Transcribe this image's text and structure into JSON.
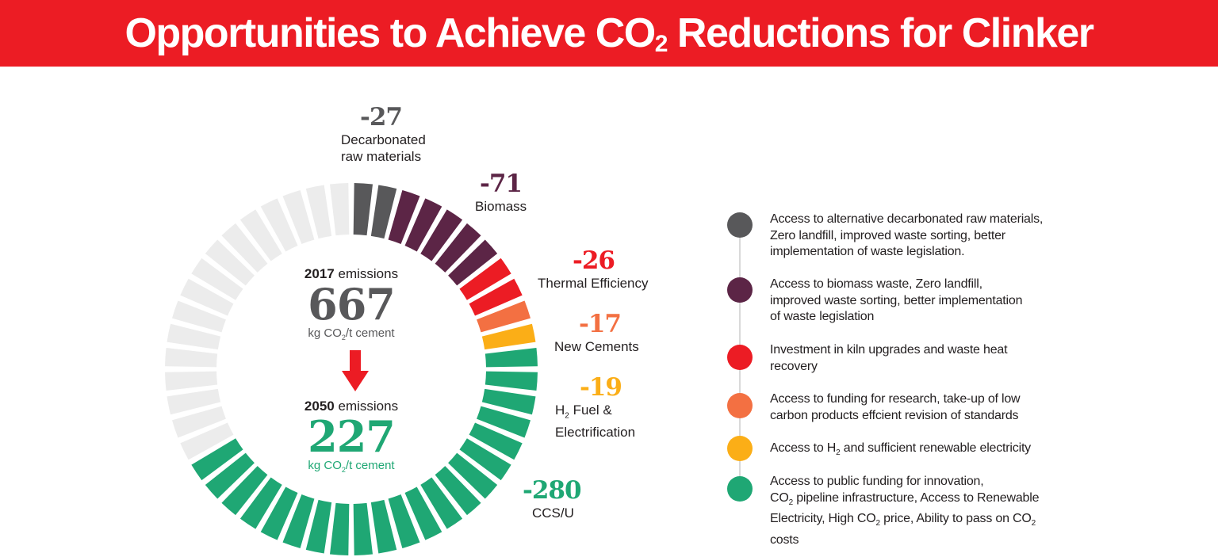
{
  "title": {
    "prefix": "Opportunities to Achieve CO",
    "subscript": "2",
    "suffix": " Reductions for Clinker"
  },
  "center": {
    "year_2017": "2017",
    "emissions_word": "emissions",
    "value_2017": "667",
    "unit_prefix": "kg CO",
    "unit_sub": "2",
    "unit_suffix": "/t cement",
    "year_2050": "2050",
    "value_2050": "227"
  },
  "colors": {
    "banner": "#ec1c24",
    "remaining": "#ececec",
    "decarbonated": "#58585a",
    "biomass": "#5c2546",
    "thermal": "#ec1c24",
    "new_cements": "#f37042",
    "h2": "#fbae17",
    "ccs": "#1fa774"
  },
  "segment_labels": [
    {
      "value": "-27",
      "name_line1": "Decarbonated",
      "name_line2": "raw materials",
      "color": "#58585a"
    },
    {
      "value": "-71",
      "name_line1": "Biomass",
      "name_line2": "",
      "color": "#5c2546"
    },
    {
      "value": "-26",
      "name_line1": "Thermal Efficiency",
      "name_line2": "",
      "color": "#ec1c24"
    },
    {
      "value": "-17",
      "name_line1": "New Cements",
      "name_line2": "",
      "color": "#f37042"
    },
    {
      "value": "-19",
      "name_line1": "H",
      "name_line1_sub": "2",
      "name_line1_rest": " Fuel &",
      "name_line2": "Electrification",
      "color": "#fbae17"
    },
    {
      "value": "-280",
      "name_line1": "CCS/U",
      "name_line2": "",
      "color": "#1fa774"
    }
  ],
  "chart_data": {
    "type": "pie",
    "style": "segmented donut",
    "title": "Opportunities to Achieve CO2 Reductions for Clinker",
    "total_2017": 667,
    "total_2050": 227,
    "unit": "kg CO2/t cement",
    "total_blocks": 48,
    "slices": [
      {
        "label": "Decarbonated raw materials",
        "value": -27,
        "blocks": 2,
        "color": "#58585a"
      },
      {
        "label": "Biomass",
        "value": -71,
        "blocks": 5,
        "color": "#5c2546"
      },
      {
        "label": "Thermal Efficiency",
        "value": -26,
        "blocks": 2,
        "color": "#ec1c24"
      },
      {
        "label": "New Cements",
        "value": -17,
        "blocks": 1,
        "color": "#f37042"
      },
      {
        "label": "H2 Fuel & Electrification",
        "value": -19,
        "blocks": 1,
        "color": "#fbae17"
      },
      {
        "label": "CCS/U",
        "value": -280,
        "blocks": 21,
        "color": "#1fa774"
      },
      {
        "label": "2050 emissions",
        "value": 227,
        "blocks": 16,
        "color": "#ececec"
      }
    ]
  },
  "legend": [
    {
      "color": "#58585a",
      "lines": [
        "Access to alternative decarbonated raw materials,",
        "Zero landfill, improved waste sorting, better",
        "implementation of waste legislation."
      ]
    },
    {
      "color": "#5c2546",
      "lines": [
        "Access to biomass waste, Zero landfill,",
        "improved waste sorting, better implementation",
        "of waste legislation"
      ]
    },
    {
      "color": "#ec1c24",
      "lines": [
        "Investment in kiln upgrades and waste heat",
        "recovery"
      ]
    },
    {
      "color": "#f37042",
      "lines": [
        "Access to funding for research, take-up of low",
        "carbon products effcient revision of standards"
      ]
    },
    {
      "color": "#fbae17",
      "line1_a": "Access to H",
      "line1_sub": "2",
      "line1_b": " and sufficient renewable electricity"
    },
    {
      "color": "#1fa774",
      "line1": "Access to public funding for innovation,",
      "line2_a": "CO",
      "line2_sub": "2",
      "line2_b": " pipeline infrastructure, Access to Renewable",
      "line3_a": "Electricity, High CO",
      "line3_sub": "2",
      "line3_b": " price, Ability to pass on CO",
      "line3_sub2": "2",
      "line4": "costs"
    }
  ]
}
